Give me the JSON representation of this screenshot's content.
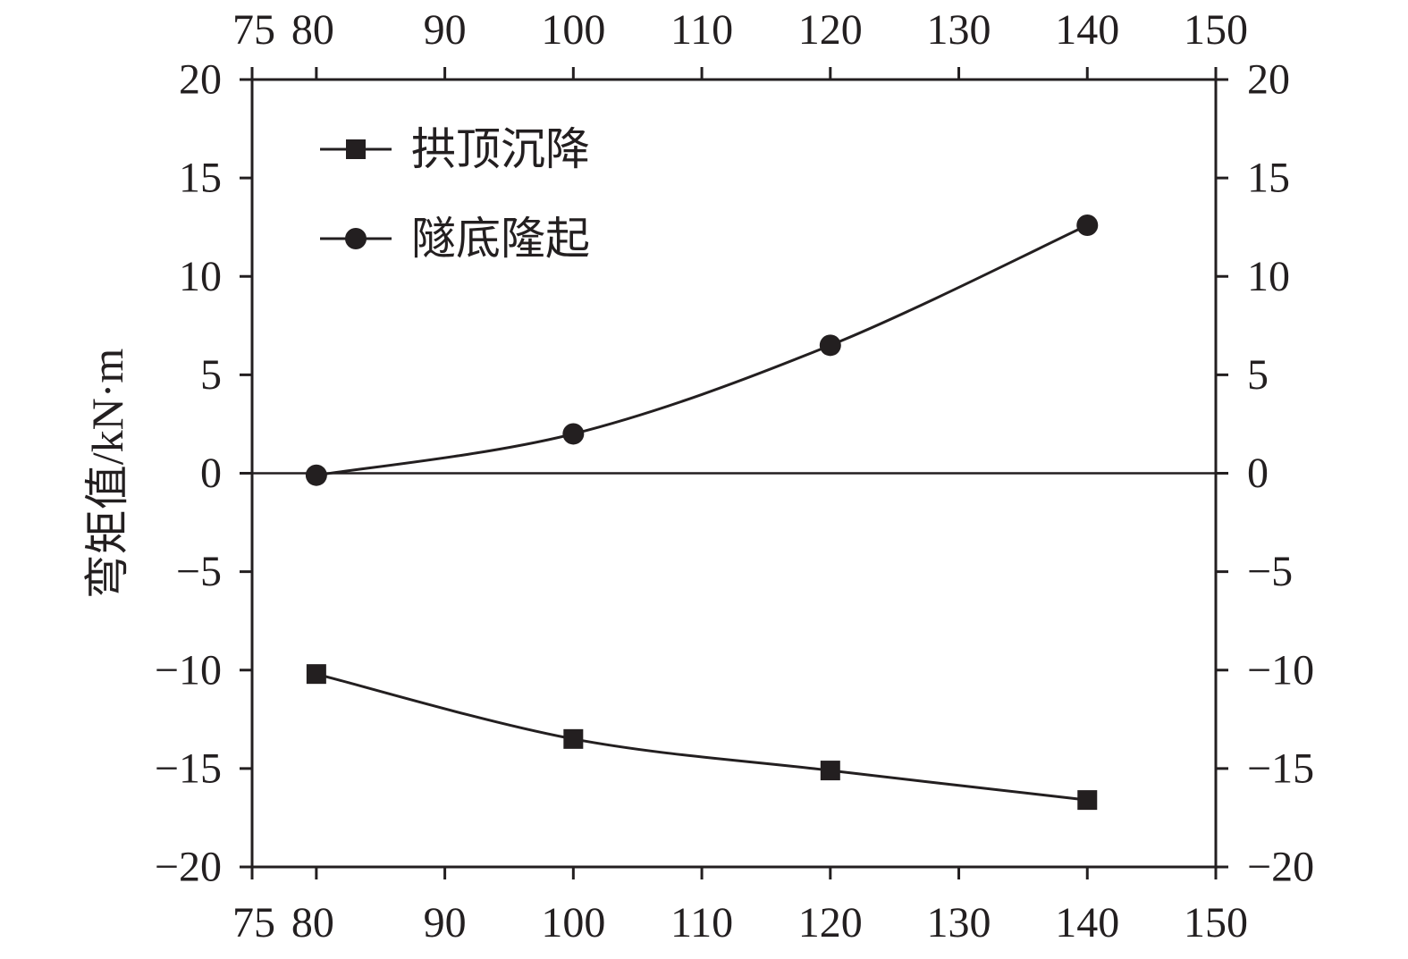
{
  "chart_data": {
    "type": "line",
    "title": "",
    "xlabel": "",
    "ylabel": "弯矩值/kN·m",
    "xlim": [
      75,
      150
    ],
    "ylim": [
      -20,
      20
    ],
    "x_ticks": [
      75,
      80,
      90,
      100,
      110,
      120,
      130,
      140,
      150
    ],
    "y_ticks": [
      20,
      15,
      10,
      5,
      0,
      -5,
      -10,
      -15,
      -20
    ],
    "y_tick_labels": [
      "20",
      "15",
      "10",
      "5",
      "0",
      "−5",
      "−10",
      "−15",
      "−20"
    ],
    "zero_line": true,
    "grid": false,
    "legend_position": "top-left",
    "x": [
      80,
      100,
      120,
      140
    ],
    "series": [
      {
        "name": "拱顶沉降",
        "marker": "square",
        "values": [
          -10.2,
          -13.5,
          -15.1,
          -16.6
        ]
      },
      {
        "name": "隧底隆起",
        "marker": "circle",
        "values": [
          -0.1,
          2.0,
          6.5,
          12.6
        ]
      }
    ],
    "colors": {
      "ink": "#231f20"
    }
  }
}
